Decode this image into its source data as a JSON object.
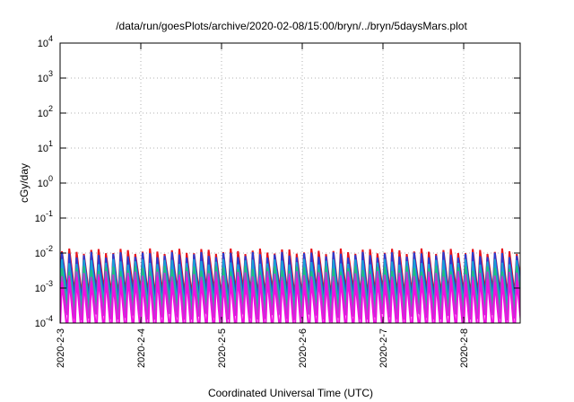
{
  "chart_data": {
    "type": "line",
    "title": "/data/run/goesPlots/archive/2020-02-08/15:00/bryn/../bryn/5daysMars.plot",
    "xlabel": "Coordinated Universal Time (UTC)",
    "ylabel": "cGy/day",
    "yscale": "log",
    "ylim": [
      0.0001,
      10000
    ],
    "xlim": [
      0,
      5.7
    ],
    "x_ticks": [
      {
        "x": 0,
        "label": "2020-2-3"
      },
      {
        "x": 1,
        "label": "2020-2-4"
      },
      {
        "x": 2,
        "label": "2020-2-5"
      },
      {
        "x": 3,
        "label": "2020-2-6"
      },
      {
        "x": 4,
        "label": "2020-2-7"
      },
      {
        "x": 5,
        "label": "2020-2-8"
      }
    ],
    "y_ticks": [
      {
        "value": 0.0001,
        "base": "10",
        "exp": "-4"
      },
      {
        "value": 0.001,
        "base": "10",
        "exp": "-3"
      },
      {
        "value": 0.01,
        "base": "10",
        "exp": "-2"
      },
      {
        "value": 0.1,
        "base": "10",
        "exp": "-1"
      },
      {
        "value": 1,
        "base": "10",
        "exp": "0"
      },
      {
        "value": 10,
        "base": "10",
        "exp": "1"
      },
      {
        "value": 100,
        "base": "10",
        "exp": "2"
      },
      {
        "value": 1000,
        "base": "10",
        "exp": "3"
      },
      {
        "value": 10000,
        "base": "10",
        "exp": "4"
      }
    ],
    "grid": true,
    "cycle_days": 0.0909,
    "series": [
      {
        "color": "#e8141c",
        "peak_log": -1.95,
        "trough_log": -3.05
      },
      {
        "color": "#2a3cd0",
        "peak_log": -2.05,
        "trough_log": -3.2
      },
      {
        "color": "#1aa0d8",
        "peak_log": -2.25,
        "trough_log": -3.4
      },
      {
        "color": "#20c080",
        "peak_log": -2.45,
        "trough_log": -3.6
      },
      {
        "color": "#b040d0",
        "peak_log": -2.6,
        "trough_log": -3.8
      },
      {
        "color": "#f010e0",
        "peak_log": -2.75,
        "trough_log": -4.25
      }
    ]
  }
}
